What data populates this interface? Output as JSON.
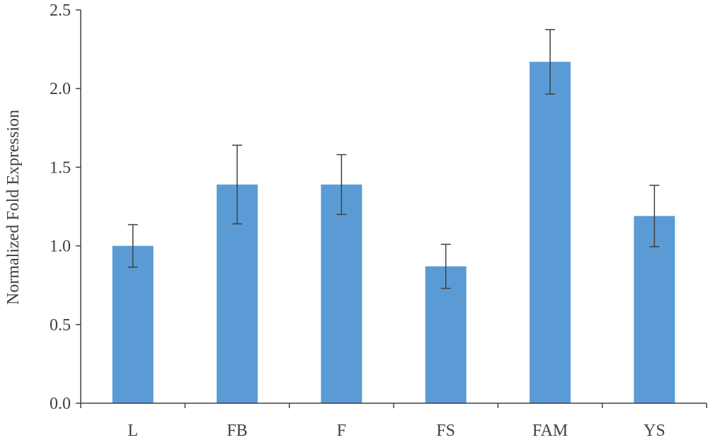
{
  "chart_data": {
    "type": "bar",
    "title": "",
    "xlabel": "",
    "ylabel": "Normalized  Fold Expression",
    "categories": [
      "L",
      "FB",
      "F",
      "FS",
      "FAM",
      "YS"
    ],
    "series": [
      {
        "values": [
          1.0,
          1.39,
          1.39,
          0.87,
          2.17,
          1.19
        ],
        "error": [
          0.135,
          0.25,
          0.19,
          0.14,
          0.205,
          0.195
        ]
      }
    ],
    "ylim": [
      0,
      2.5
    ],
    "yticks": [
      "0.0",
      "0.5",
      "1.0",
      "1.5",
      "2.0",
      "2.5"
    ],
    "grid": false,
    "legend": "none",
    "colors": {
      "bar": "#5b9bd5",
      "axis": "#404040",
      "error_bar": "#404040"
    }
  }
}
